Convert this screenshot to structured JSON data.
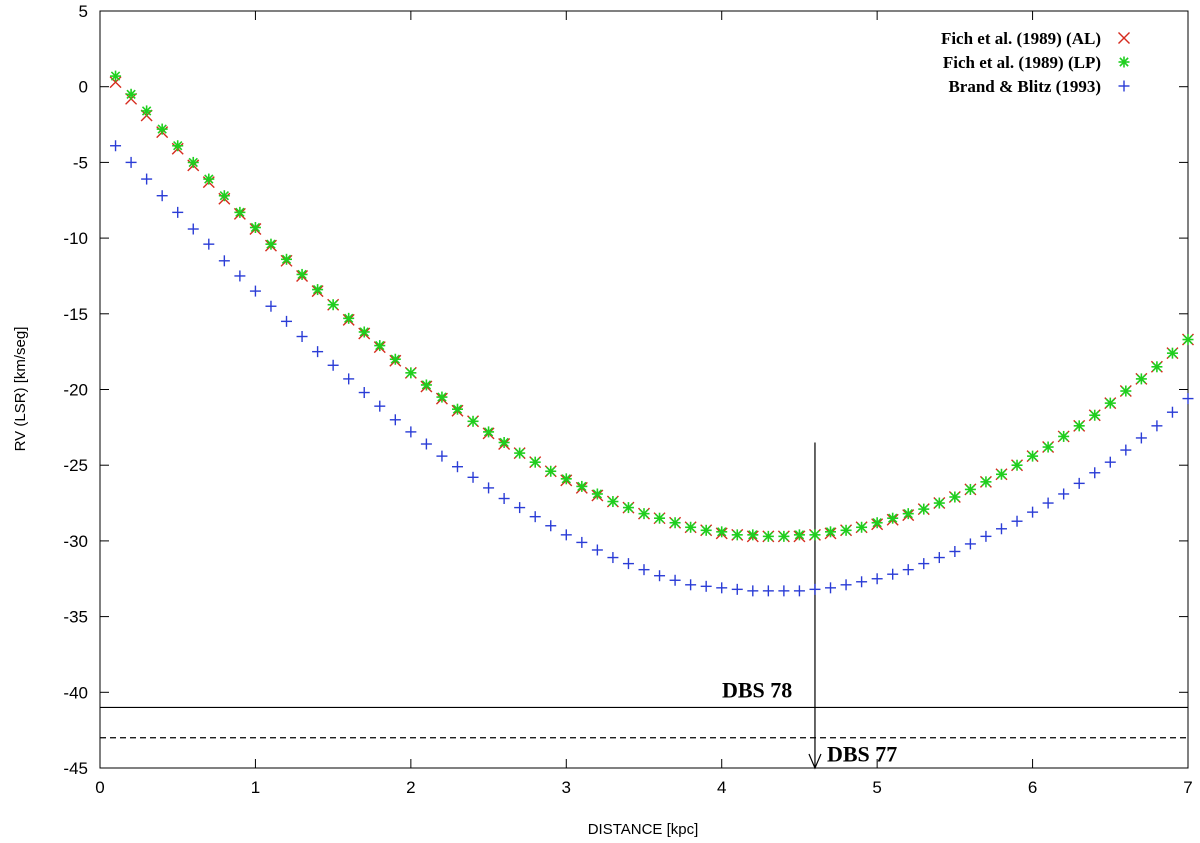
{
  "chart_data": {
    "type": "scatter",
    "xlabel": "DISTANCE [kpc]",
    "ylabel": "RV (LSR) [km/seg]",
    "xlim": [
      0,
      7
    ],
    "ylim": [
      -45,
      5
    ],
    "xticks": [
      0,
      1,
      2,
      3,
      4,
      5,
      6,
      7
    ],
    "yticks": [
      5,
      0,
      -5,
      -10,
      -15,
      -20,
      -25,
      -30,
      -35,
      -40,
      -45
    ],
    "grid": false,
    "legend_position": "top-right",
    "series": [
      {
        "name": "Fich et al. (1989) (AL)",
        "marker": "x",
        "color": "#d62b1e",
        "x": [
          0.1,
          0.2,
          0.3,
          0.4,
          0.5,
          0.6,
          0.7,
          0.8,
          0.9,
          1.0,
          1.1,
          1.2,
          1.3,
          1.4,
          1.5,
          1.6,
          1.7,
          1.8,
          1.9,
          2.0,
          2.1,
          2.2,
          2.3,
          2.4,
          2.5,
          2.6,
          2.7,
          2.8,
          2.9,
          3.0,
          3.1,
          3.2,
          3.3,
          3.4,
          3.5,
          3.6,
          3.7,
          3.8,
          3.9,
          4.0,
          4.1,
          4.2,
          4.3,
          4.4,
          4.5,
          4.6,
          4.7,
          4.8,
          4.9,
          5.0,
          5.1,
          5.2,
          5.3,
          5.4,
          5.5,
          5.6,
          5.7,
          5.8,
          5.9,
          6.0,
          6.1,
          6.2,
          6.3,
          6.4,
          6.5,
          6.6,
          6.7,
          6.8,
          6.9,
          7.0
        ],
        "y": [
          0.3,
          -0.8,
          -1.9,
          -3.0,
          -4.1,
          -5.2,
          -6.3,
          -7.4,
          -8.4,
          -9.4,
          -10.5,
          -11.5,
          -12.5,
          -13.5,
          -14.4,
          -15.4,
          -16.3,
          -17.2,
          -18.1,
          -18.9,
          -19.8,
          -20.6,
          -21.4,
          -22.1,
          -22.9,
          -23.6,
          -24.2,
          -24.8,
          -25.4,
          -26.0,
          -26.5,
          -27.0,
          -27.4,
          -27.8,
          -28.2,
          -28.5,
          -28.8,
          -29.1,
          -29.3,
          -29.5,
          -29.6,
          -29.7,
          -29.7,
          -29.7,
          -29.7,
          -29.6,
          -29.5,
          -29.3,
          -29.1,
          -28.9,
          -28.6,
          -28.3,
          -27.9,
          -27.5,
          -27.1,
          -26.6,
          -26.1,
          -25.6,
          -25.0,
          -24.4,
          -23.8,
          -23.1,
          -22.4,
          -21.7,
          -20.9,
          -20.1,
          -19.3,
          -18.5,
          -17.6,
          -16.7
        ]
      },
      {
        "name": "Fich et al. (1989) (LP)",
        "marker": "star",
        "color": "#1fcf1f",
        "x": [
          0.1,
          0.2,
          0.3,
          0.4,
          0.5,
          0.6,
          0.7,
          0.8,
          0.9,
          1.0,
          1.1,
          1.2,
          1.3,
          1.4,
          1.5,
          1.6,
          1.7,
          1.8,
          1.9,
          2.0,
          2.1,
          2.2,
          2.3,
          2.4,
          2.5,
          2.6,
          2.7,
          2.8,
          2.9,
          3.0,
          3.1,
          3.2,
          3.3,
          3.4,
          3.5,
          3.6,
          3.7,
          3.8,
          3.9,
          4.0,
          4.1,
          4.2,
          4.3,
          4.4,
          4.5,
          4.6,
          4.7,
          4.8,
          4.9,
          5.0,
          5.1,
          5.2,
          5.3,
          5.4,
          5.5,
          5.6,
          5.7,
          5.8,
          5.9,
          6.0,
          6.1,
          6.2,
          6.3,
          6.4,
          6.5,
          6.6,
          6.7,
          6.8,
          6.9,
          7.0
        ],
        "y": [
          0.7,
          -0.5,
          -1.6,
          -2.8,
          -3.9,
          -5.0,
          -6.1,
          -7.2,
          -8.3,
          -9.3,
          -10.4,
          -11.4,
          -12.4,
          -13.4,
          -14.4,
          -15.3,
          -16.2,
          -17.1,
          -18.0,
          -18.9,
          -19.7,
          -20.5,
          -21.3,
          -22.1,
          -22.8,
          -23.5,
          -24.2,
          -24.8,
          -25.4,
          -25.9,
          -26.4,
          -26.9,
          -27.4,
          -27.8,
          -28.2,
          -28.5,
          -28.8,
          -29.1,
          -29.3,
          -29.4,
          -29.6,
          -29.6,
          -29.7,
          -29.7,
          -29.6,
          -29.6,
          -29.4,
          -29.3,
          -29.1,
          -28.8,
          -28.5,
          -28.2,
          -27.9,
          -27.5,
          -27.1,
          -26.6,
          -26.1,
          -25.6,
          -25.0,
          -24.4,
          -23.8,
          -23.1,
          -22.4,
          -21.7,
          -20.9,
          -20.1,
          -19.3,
          -18.5,
          -17.6,
          -16.7
        ]
      },
      {
        "name": "Brand & Blitz (1993)",
        "marker": "plus",
        "color": "#2a3cd6",
        "x": [
          0.1,
          0.2,
          0.3,
          0.4,
          0.5,
          0.6,
          0.7,
          0.8,
          0.9,
          1.0,
          1.1,
          1.2,
          1.3,
          1.4,
          1.5,
          1.6,
          1.7,
          1.8,
          1.9,
          2.0,
          2.1,
          2.2,
          2.3,
          2.4,
          2.5,
          2.6,
          2.7,
          2.8,
          2.9,
          3.0,
          3.1,
          3.2,
          3.3,
          3.4,
          3.5,
          3.6,
          3.7,
          3.8,
          3.9,
          4.0,
          4.1,
          4.2,
          4.3,
          4.4,
          4.5,
          4.6,
          4.7,
          4.8,
          4.9,
          5.0,
          5.1,
          5.2,
          5.3,
          5.4,
          5.5,
          5.6,
          5.7,
          5.8,
          5.9,
          6.0,
          6.1,
          6.2,
          6.3,
          6.4,
          6.5,
          6.6,
          6.7,
          6.8,
          6.9,
          7.0
        ],
        "y": [
          -3.9,
          -5.0,
          -6.1,
          -7.2,
          -8.3,
          -9.4,
          -10.4,
          -11.5,
          -12.5,
          -13.5,
          -14.5,
          -15.5,
          -16.5,
          -17.5,
          -18.4,
          -19.3,
          -20.2,
          -21.1,
          -22.0,
          -22.8,
          -23.6,
          -24.4,
          -25.1,
          -25.8,
          -26.5,
          -27.2,
          -27.8,
          -28.4,
          -29.0,
          -29.6,
          -30.1,
          -30.6,
          -31.1,
          -31.5,
          -31.9,
          -32.3,
          -32.6,
          -32.9,
          -33.0,
          -33.1,
          -33.2,
          -33.3,
          -33.3,
          -33.3,
          -33.3,
          -33.2,
          -33.1,
          -32.9,
          -32.7,
          -32.5,
          -32.2,
          -31.9,
          -31.5,
          -31.1,
          -30.7,
          -30.2,
          -29.7,
          -29.2,
          -28.7,
          -28.1,
          -27.5,
          -26.9,
          -26.2,
          -25.5,
          -24.8,
          -24.0,
          -23.2,
          -22.4,
          -21.5,
          -20.6
        ]
      }
    ],
    "annotations": [
      {
        "label": "DBS 78",
        "type": "hline",
        "y": -41,
        "style": "solid"
      },
      {
        "label": "DBS 77",
        "type": "hline",
        "y": -43,
        "style": "dashed"
      },
      {
        "type": "arrow",
        "x": 4.6,
        "y_from": -23.5,
        "y_to": -45
      }
    ]
  }
}
